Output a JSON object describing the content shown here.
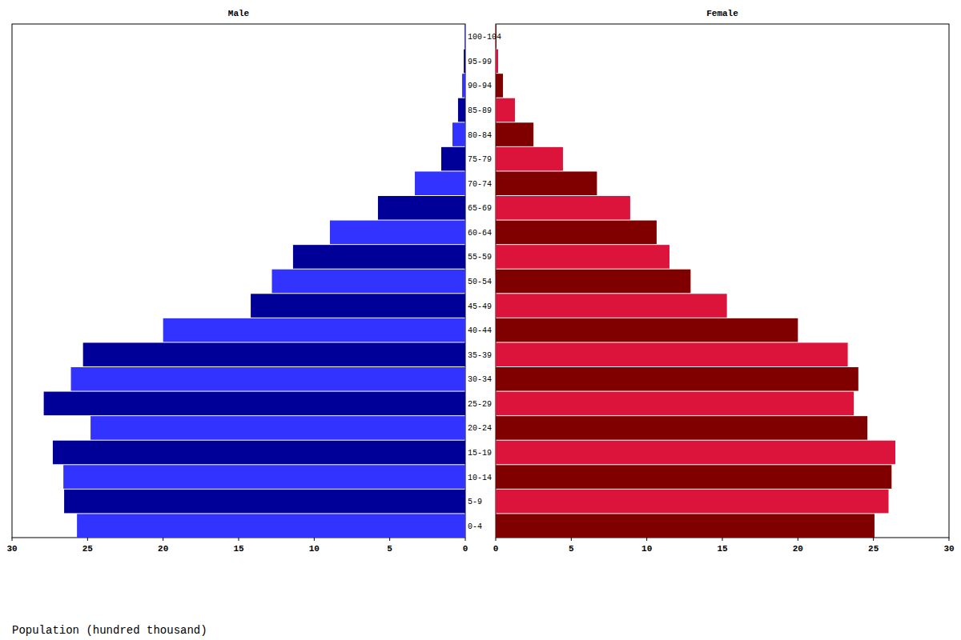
{
  "chart_data": {
    "type": "bar",
    "orientation": "horizontal",
    "categories": [
      "0-4",
      "5-9",
      "10-14",
      "15-19",
      "20-24",
      "25-29",
      "30-34",
      "35-39",
      "40-44",
      "45-49",
      "50-54",
      "55-59",
      "60-64",
      "65-69",
      "70-74",
      "75-79",
      "80-84",
      "85-89",
      "90-94",
      "95-99",
      "100-104"
    ],
    "series": [
      {
        "name": "Male",
        "colors": [
          "#3333ff",
          "#000099",
          "#3333ff",
          "#000099",
          "#3333ff",
          "#000099",
          "#3333ff",
          "#000099",
          "#3333ff",
          "#000099",
          "#3333ff",
          "#000099",
          "#3333ff",
          "#000099",
          "#3333ff",
          "#000099",
          "#3333ff",
          "#000099",
          "#3333ff",
          "#000099",
          "#3333ff"
        ],
        "values": [
          25.7,
          26.55,
          26.6,
          27.3,
          24.8,
          27.9,
          26.1,
          25.3,
          20.0,
          14.2,
          12.8,
          11.4,
          8.96,
          5.78,
          3.34,
          1.59,
          0.85,
          0.48,
          0.21,
          0.1,
          0.05
        ]
      },
      {
        "name": "Female",
        "colors": [
          "#800000",
          "#dc143c",
          "#800000",
          "#dc143c",
          "#800000",
          "#dc143c",
          "#800000",
          "#dc143c",
          "#800000",
          "#dc143c",
          "#800000",
          "#dc143c",
          "#800000",
          "#dc143c",
          "#800000",
          "#dc143c",
          "#800000",
          "#dc143c",
          "#800000",
          "#dc143c",
          "#800000"
        ],
        "values": [
          25.07,
          26.0,
          26.2,
          26.45,
          24.6,
          23.7,
          24.0,
          23.3,
          20.0,
          15.3,
          12.9,
          11.5,
          10.65,
          8.9,
          6.7,
          4.45,
          2.5,
          1.27,
          0.48,
          0.16,
          0.05
        ]
      }
    ],
    "xlim": [
      0,
      30
    ],
    "xticks": [
      0,
      5,
      10,
      15,
      20,
      25,
      30
    ],
    "x_label": "Population (hundred thousand)"
  }
}
